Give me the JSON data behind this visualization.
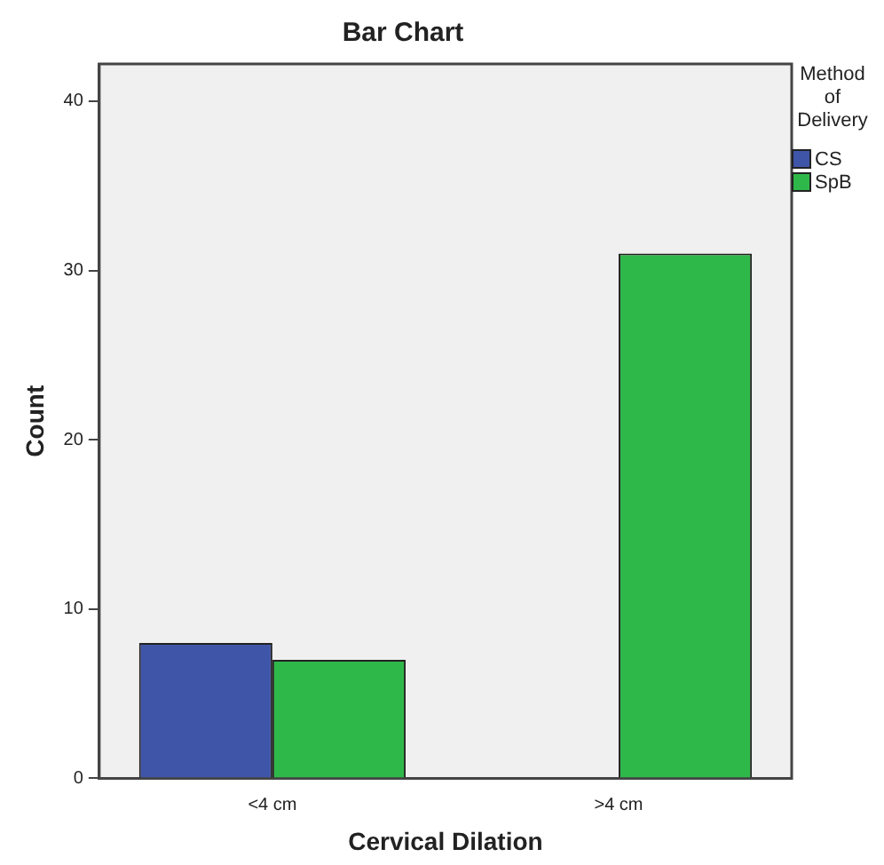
{
  "chart_data": {
    "type": "bar",
    "title": "Bar Chart",
    "xlabel": "Cervical Dilation",
    "ylabel": "Count",
    "legend_title": "Method of Delivery",
    "categories": [
      "<4 cm",
      ">4 cm"
    ],
    "series": [
      {
        "name": "CS",
        "color": "#3f55a8",
        "values": [
          8,
          null
        ]
      },
      {
        "name": "SpB",
        "color": "#2fb84a",
        "values": [
          7,
          31
        ]
      }
    ],
    "ylim": [
      0,
      42.2
    ],
    "yticks": [
      0,
      10,
      20,
      30,
      40
    ],
    "grid": false,
    "legend": "top right"
  }
}
